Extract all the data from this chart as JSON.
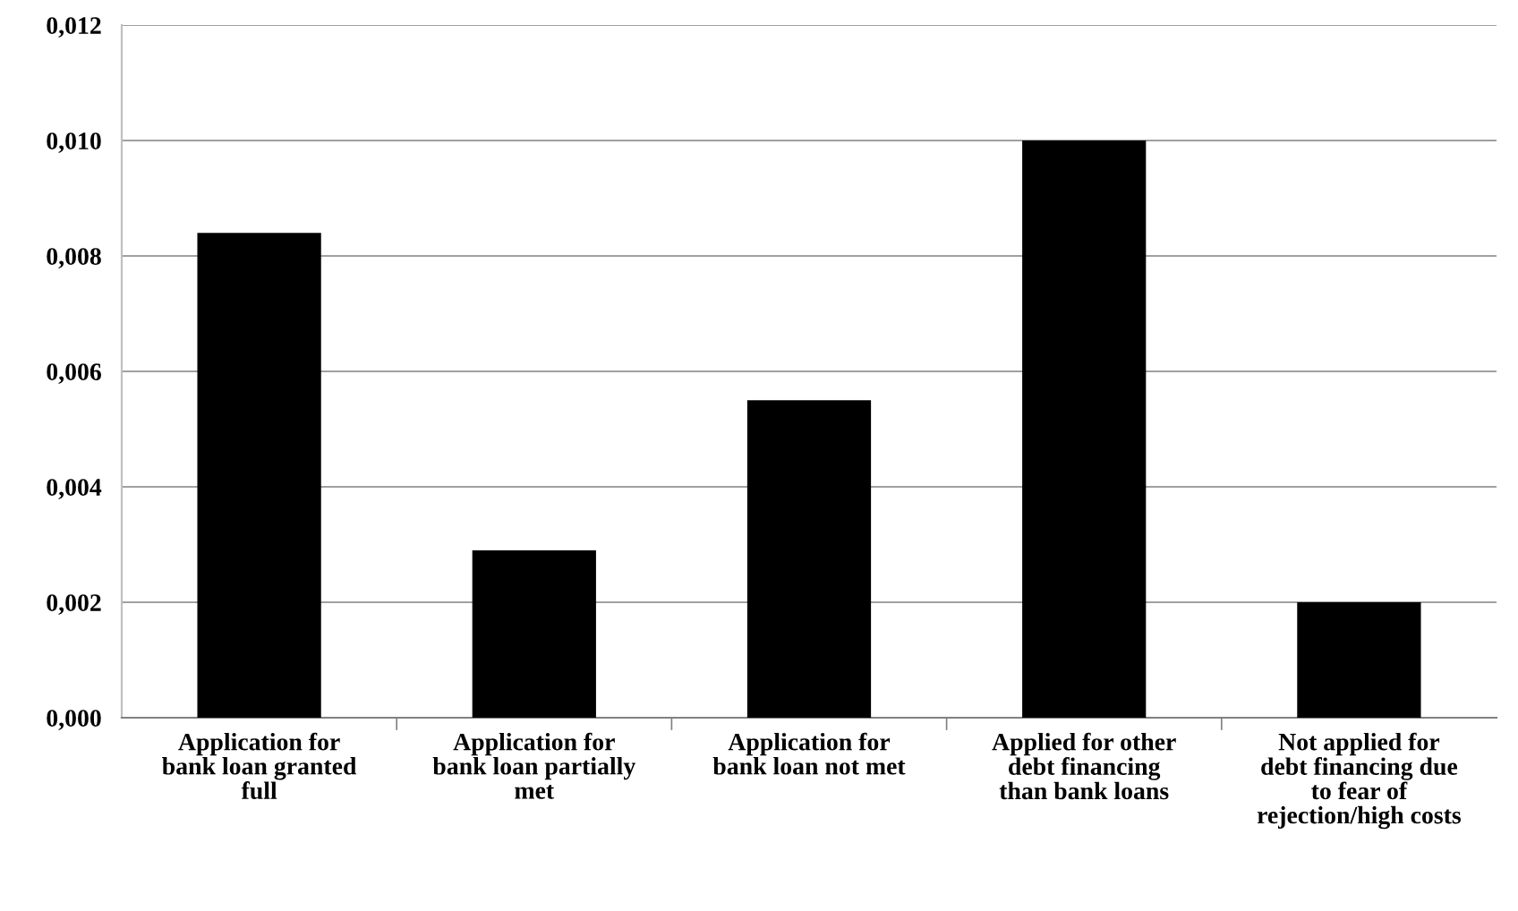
{
  "chart_data": {
    "type": "bar",
    "categories": [
      "Application for\nbank loan granted\nfull",
      "Application for\nbank loan partially\nmet",
      "Application for\nbank loan not met",
      "Applied for other\ndebt financing\nthan bank loans",
      "Not applied for\ndebt financing due\nto fear of\nrejection/high costs"
    ],
    "values": [
      0.0084,
      0.0029,
      0.0055,
      0.01,
      0.002
    ],
    "color": "#000000",
    "ylim": [
      0,
      0.012
    ],
    "yticks": [
      {
        "value": 0,
        "label": "0,000"
      },
      {
        "value": 0.002,
        "label": "0,002"
      },
      {
        "value": 0.004,
        "label": "0,004"
      },
      {
        "value": 0.006,
        "label": "0,006"
      },
      {
        "value": 0.008,
        "label": "0,008"
      },
      {
        "value": 0.01,
        "label": "0,010"
      },
      {
        "value": 0.012,
        "label": "0,012"
      }
    ],
    "grid": "y"
  }
}
